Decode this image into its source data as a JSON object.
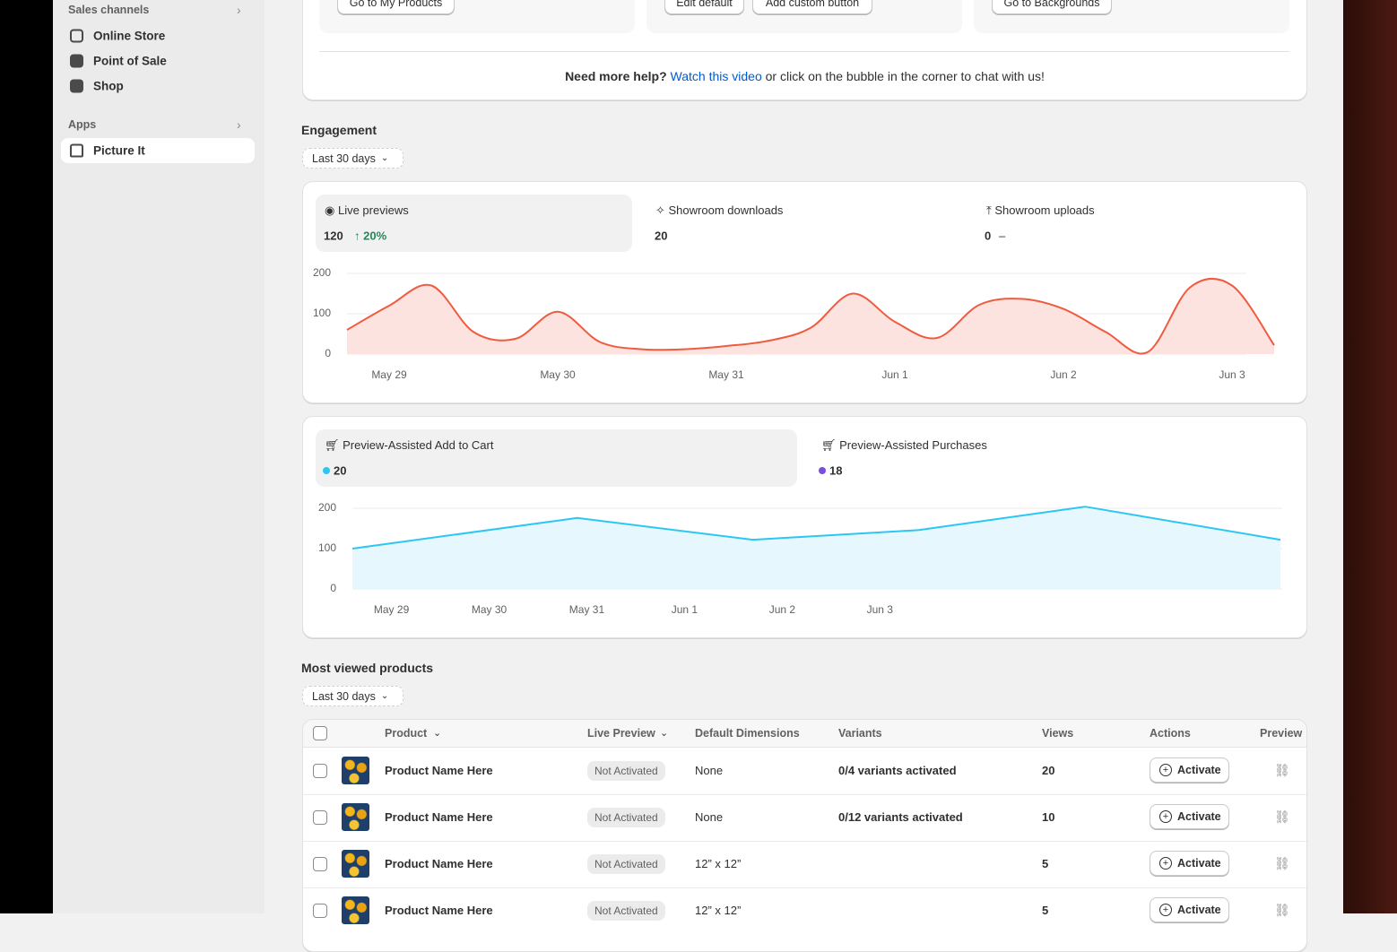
{
  "sidebar": {
    "sales_channels": "Sales channels",
    "channels": [
      "Online Store",
      "Point of Sale",
      "Shop"
    ],
    "apps": "Apps",
    "app_items": [
      "Picture It"
    ]
  },
  "top_cards": {
    "buttons": [
      [
        "Go to My Products"
      ],
      [
        "Edit default",
        "Add custom button"
      ],
      [
        "Go to Backgrounds"
      ]
    ]
  },
  "help": {
    "lead": "Need more help?",
    "link": "Watch this video",
    "rest": "or click on the bubble in the corner to chat with us!"
  },
  "engagement": {
    "title": "Engagement",
    "range": "Last 30 days",
    "metrics": [
      {
        "label": "Live previews",
        "value": 120,
        "change": "20%"
      },
      {
        "label": "Showroom downloads",
        "value": 20
      },
      {
        "label": "Showroom uploads",
        "value": 0,
        "change": "–"
      }
    ],
    "chart": {
      "type": "area",
      "smooth": true,
      "color": "#ef5b3f",
      "fill": "#fde3df",
      "categories": [
        null,
        "May 29",
        null,
        null,
        null,
        "May 30",
        null,
        null,
        null,
        "May 31",
        null,
        null,
        null,
        "Jun 1",
        null,
        null,
        null,
        "Jun 2",
        null,
        null,
        null,
        "Jun 3",
        null
      ],
      "values": [
        60,
        120,
        170,
        55,
        38,
        105,
        30,
        12,
        12,
        20,
        33,
        65,
        150,
        80,
        40,
        122,
        137,
        112,
        55,
        5,
        165,
        170,
        22
      ],
      "ylim": [
        0,
        200
      ],
      "yticks": [
        0,
        100,
        200
      ],
      "grid": true
    }
  },
  "conversion": {
    "metrics": [
      {
        "label": "Preview-Assisted Add to Cart",
        "value": 20,
        "color": "#2cc6f5"
      },
      {
        "label": "Preview-Assisted Purchases",
        "value": 18,
        "color": "#7c4ce0"
      }
    ],
    "chart": {
      "type": "area",
      "smooth": false,
      "color": "#2cc6f5",
      "fill": "#e6f7fd",
      "x": [
        -0.4,
        1.9,
        3.7,
        5.4,
        7.1,
        9.1
      ],
      "values": [
        100,
        176,
        122,
        146,
        204,
        122
      ],
      "xlim": [
        -0.4,
        9.1
      ],
      "xticks": [
        {
          "value": 0,
          "label": "May 29"
        },
        {
          "value": 1,
          "label": "May 30"
        },
        {
          "value": 2,
          "label": "May 31"
        },
        {
          "value": 3,
          "label": "Jun 1"
        },
        {
          "value": 4,
          "label": "Jun 2"
        },
        {
          "value": 5,
          "label": "Jun 3"
        }
      ],
      "ylim": [
        0,
        200
      ],
      "yticks": [
        0,
        100,
        200
      ],
      "grid": true
    }
  },
  "products": {
    "title": "Most viewed products",
    "range": "Last 30 days",
    "columns": [
      "Product",
      "Live Preview",
      "Default Dimensions",
      "Variants",
      "Views",
      "Actions",
      "Preview"
    ],
    "rows": [
      {
        "name": "Product Name Here",
        "status": "Not Activated",
        "dimensions": "None",
        "variants": "0/4 variants activated",
        "views": 20,
        "action": "Activate"
      },
      {
        "name": "Product Name Here",
        "status": "Not Activated",
        "dimensions": "None",
        "variants": "0/12 variants activated",
        "views": 10,
        "action": "Activate"
      },
      {
        "name": "Product Name Here",
        "status": "Not Activated",
        "dimensions": "12” x 12”",
        "views": 5,
        "action": "Activate"
      },
      {
        "name": "Product Name Here",
        "status": "Not Activated",
        "dimensions": "12” x 12”",
        "views": 5,
        "action": "Activate"
      }
    ]
  }
}
